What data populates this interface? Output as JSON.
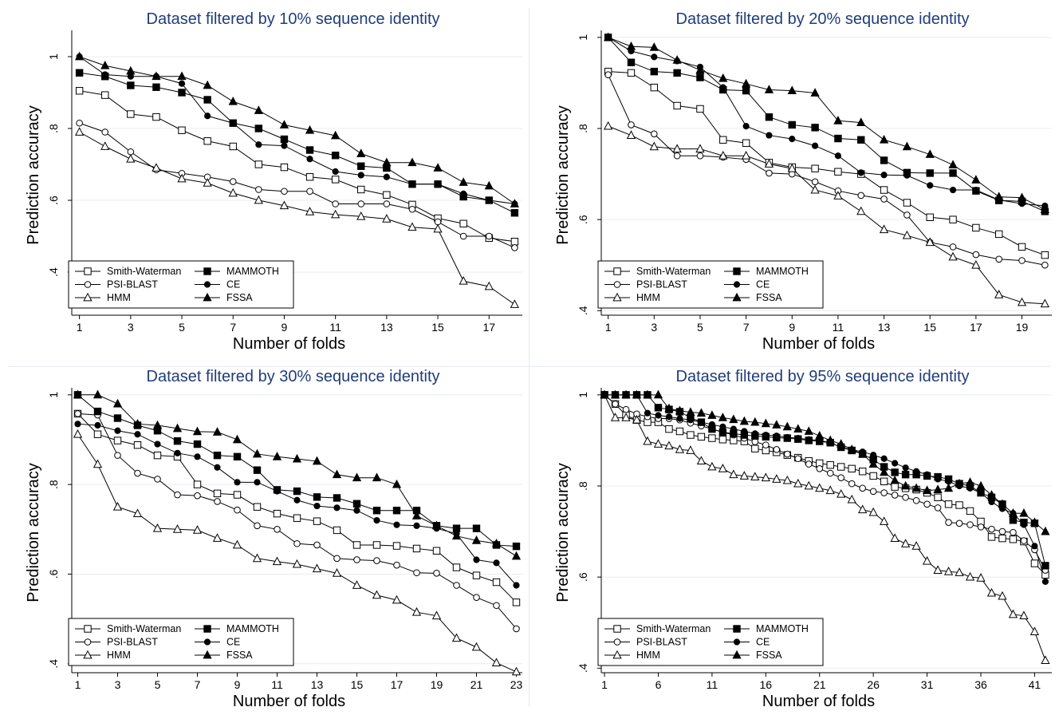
{
  "figure": {
    "legend_labels": {
      "sw": "Smith-Waterman",
      "psi": "PSI-BLAST",
      "hmm": "HMM",
      "mam": "MAMMOTH",
      "ce": "CE",
      "fssa": "FSSA"
    }
  },
  "chart_data": [
    {
      "type": "line",
      "title": "Dataset filtered by 10% sequence identity",
      "xlabel": "Number of folds",
      "ylabel": "Prediction accuracy",
      "x": [
        1,
        2,
        3,
        4,
        5,
        6,
        7,
        8,
        9,
        10,
        11,
        12,
        13,
        14,
        15,
        16,
        17,
        18
      ],
      "xlim": [
        0.7,
        18.3
      ],
      "ylim": [
        0.28,
        1.06
      ],
      "xticks": [
        1,
        3,
        5,
        7,
        9,
        11,
        13,
        15,
        17
      ],
      "yticks": [
        0.4,
        0.6,
        0.8,
        1.0
      ],
      "ytick_labels": [
        ".4",
        ".6",
        ".8",
        "1"
      ],
      "grid": true,
      "legend_position": "bottom-left",
      "series": [
        {
          "key": "sw",
          "name": "Smith-Waterman",
          "marker": "square-open",
          "values": [
            0.905,
            0.893,
            0.84,
            0.832,
            0.795,
            0.765,
            0.75,
            0.7,
            0.692,
            0.665,
            0.658,
            0.63,
            0.615,
            0.588,
            0.55,
            0.535,
            0.495,
            0.485
          ]
        },
        {
          "key": "psi",
          "name": "PSI-BLAST",
          "marker": "circle-open",
          "values": [
            0.815,
            0.79,
            0.735,
            0.685,
            0.675,
            0.665,
            0.652,
            0.63,
            0.625,
            0.625,
            0.59,
            0.59,
            0.59,
            0.575,
            0.54,
            0.5,
            0.5,
            0.468
          ]
        },
        {
          "key": "hmm",
          "name": "HMM",
          "marker": "triangle-open",
          "values": [
            0.79,
            0.75,
            0.715,
            0.69,
            0.66,
            0.648,
            0.62,
            0.6,
            0.585,
            0.568,
            0.56,
            0.555,
            0.548,
            0.525,
            0.52,
            0.375,
            0.36,
            0.31
          ]
        },
        {
          "key": "mam",
          "name": "MAMMOTH",
          "marker": "square-filled",
          "values": [
            0.955,
            0.945,
            0.92,
            0.915,
            0.9,
            0.88,
            0.815,
            0.8,
            0.77,
            0.74,
            0.725,
            0.695,
            0.69,
            0.645,
            0.645,
            0.61,
            0.6,
            0.565
          ]
        },
        {
          "key": "ce",
          "name": "CE",
          "marker": "circle-filled",
          "values": [
            1.0,
            0.95,
            0.945,
            0.945,
            0.925,
            0.835,
            0.815,
            0.755,
            0.752,
            0.715,
            0.68,
            0.67,
            0.665,
            0.645,
            0.645,
            0.618,
            0.6,
            0.59
          ]
        },
        {
          "key": "fssa",
          "name": "FSSA",
          "marker": "triangle-filled",
          "values": [
            1.0,
            0.975,
            0.96,
            0.945,
            0.945,
            0.92,
            0.875,
            0.85,
            0.81,
            0.795,
            0.78,
            0.73,
            0.705,
            0.705,
            0.69,
            0.65,
            0.64,
            0.59
          ]
        }
      ]
    },
    {
      "type": "line",
      "title": "Dataset filtered by 20% sequence identity",
      "xlabel": "Number of folds",
      "ylabel": "Prediction accuracy",
      "x": [
        1,
        2,
        3,
        4,
        5,
        6,
        7,
        8,
        9,
        10,
        11,
        12,
        13,
        14,
        15,
        16,
        17,
        18,
        19,
        20
      ],
      "xlim": [
        0.7,
        20.3
      ],
      "ylim": [
        0.39,
        1.005
      ],
      "xticks": [
        1,
        3,
        5,
        7,
        9,
        11,
        13,
        15,
        17,
        19
      ],
      "yticks": [
        0.4,
        0.6,
        0.8,
        1.0
      ],
      "ytick_labels": [
        ".4",
        ".6",
        ".8",
        "1"
      ],
      "grid": true,
      "legend_position": "bottom-left",
      "series": [
        {
          "key": "sw",
          "name": "Smith-Waterman",
          "marker": "square-open",
          "values": [
            0.925,
            0.922,
            0.89,
            0.85,
            0.843,
            0.775,
            0.768,
            0.725,
            0.715,
            0.712,
            0.705,
            0.7,
            0.665,
            0.637,
            0.605,
            0.6,
            0.582,
            0.568,
            0.54,
            0.522
          ]
        },
        {
          "key": "psi",
          "name": "PSI-BLAST",
          "marker": "circle-open",
          "values": [
            0.918,
            0.808,
            0.788,
            0.74,
            0.74,
            0.737,
            0.732,
            0.702,
            0.7,
            0.683,
            0.663,
            0.653,
            0.645,
            0.61,
            0.55,
            0.54,
            0.523,
            0.513,
            0.51,
            0.5
          ]
        },
        {
          "key": "hmm",
          "name": "HMM",
          "marker": "triangle-open",
          "values": [
            0.805,
            0.785,
            0.76,
            0.755,
            0.755,
            0.74,
            0.74,
            0.722,
            0.712,
            0.665,
            0.652,
            0.618,
            0.578,
            0.565,
            0.55,
            0.518,
            0.5,
            0.435,
            0.418,
            0.415
          ]
        },
        {
          "key": "mam",
          "name": "MAMMOTH",
          "marker": "square-filled",
          "values": [
            1.0,
            0.945,
            0.925,
            0.922,
            0.912,
            0.885,
            0.883,
            0.825,
            0.808,
            0.802,
            0.778,
            0.775,
            0.73,
            0.703,
            0.702,
            0.702,
            0.663,
            0.642,
            0.64,
            0.618
          ]
        },
        {
          "key": "ce",
          "name": "CE",
          "marker": "circle-filled",
          "values": [
            1.0,
            0.97,
            0.957,
            0.948,
            0.935,
            0.89,
            0.805,
            0.785,
            0.777,
            0.762,
            0.74,
            0.703,
            0.698,
            0.697,
            0.675,
            0.665,
            0.665,
            0.643,
            0.635,
            0.63
          ]
        },
        {
          "key": "fssa",
          "name": "FSSA",
          "marker": "triangle-filled",
          "values": [
            1.0,
            0.98,
            0.978,
            0.95,
            0.928,
            0.91,
            0.898,
            0.885,
            0.883,
            0.878,
            0.817,
            0.813,
            0.775,
            0.76,
            0.743,
            0.72,
            0.687,
            0.65,
            0.648,
            0.622
          ]
        }
      ]
    },
    {
      "type": "line",
      "title": "Dataset filtered by 30% sequence identity",
      "xlabel": "Number of folds",
      "ylabel": "Prediction accuracy",
      "x": [
        1,
        2,
        3,
        4,
        5,
        6,
        7,
        8,
        9,
        10,
        11,
        12,
        13,
        14,
        15,
        16,
        17,
        18,
        19,
        20,
        21,
        22,
        23
      ],
      "xlim": [
        0.7,
        23.3
      ],
      "ylim": [
        0.38,
        1.005
      ],
      "xticks": [
        1,
        3,
        5,
        7,
        9,
        11,
        13,
        15,
        17,
        19,
        21,
        23
      ],
      "yticks": [
        0.4,
        0.6,
        0.8,
        1.0
      ],
      "ytick_labels": [
        ".4",
        ".6",
        ".8",
        "1"
      ],
      "grid": true,
      "legend_position": "bottom-left",
      "series": [
        {
          "key": "sw",
          "name": "Smith-Waterman",
          "marker": "square-open",
          "values": [
            0.958,
            0.912,
            0.898,
            0.888,
            0.865,
            0.862,
            0.8,
            0.78,
            0.777,
            0.75,
            0.735,
            0.725,
            0.718,
            0.698,
            0.665,
            0.665,
            0.663,
            0.657,
            0.652,
            0.615,
            0.597,
            0.582,
            0.537
          ]
        },
        {
          "key": "psi",
          "name": "PSI-BLAST",
          "marker": "circle-open",
          "values": [
            0.958,
            0.955,
            0.865,
            0.825,
            0.812,
            0.777,
            0.775,
            0.762,
            0.743,
            0.708,
            0.7,
            0.668,
            0.665,
            0.635,
            0.632,
            0.63,
            0.62,
            0.603,
            0.602,
            0.575,
            0.548,
            0.53,
            0.478
          ]
        },
        {
          "key": "hmm",
          "name": "HMM",
          "marker": "triangle-open",
          "values": [
            0.912,
            0.845,
            0.75,
            0.735,
            0.702,
            0.7,
            0.698,
            0.68,
            0.665,
            0.635,
            0.628,
            0.622,
            0.612,
            0.602,
            0.575,
            0.553,
            0.542,
            0.515,
            0.507,
            0.457,
            0.437,
            0.402,
            0.382
          ]
        },
        {
          "key": "mam",
          "name": "MAMMOTH",
          "marker": "square-filled",
          "values": [
            1.0,
            0.963,
            0.948,
            0.932,
            0.92,
            0.897,
            0.89,
            0.865,
            0.862,
            0.832,
            0.788,
            0.785,
            0.772,
            0.77,
            0.757,
            0.742,
            0.742,
            0.742,
            0.708,
            0.702,
            0.702,
            0.665,
            0.662
          ]
        },
        {
          "key": "ce",
          "name": "CE",
          "marker": "circle-filled",
          "values": [
            0.935,
            0.932,
            0.92,
            0.912,
            0.89,
            0.87,
            0.862,
            0.838,
            0.805,
            0.805,
            0.785,
            0.765,
            0.752,
            0.748,
            0.742,
            0.72,
            0.71,
            0.708,
            0.702,
            0.69,
            0.632,
            0.625,
            0.575
          ]
        },
        {
          "key": "fssa",
          "name": "FSSA",
          "marker": "triangle-filled",
          "values": [
            1.0,
            1.0,
            0.98,
            0.935,
            0.932,
            0.925,
            0.918,
            0.917,
            0.9,
            0.868,
            0.862,
            0.857,
            0.852,
            0.822,
            0.815,
            0.815,
            0.8,
            0.73,
            0.708,
            0.685,
            0.675,
            0.668,
            0.64
          ]
        }
      ]
    },
    {
      "type": "line",
      "title": "Dataset filtered by 95% sequence identity",
      "xlabel": "Number of folds",
      "ylabel": "Prediction accuracy",
      "x": [
        1,
        2,
        3,
        4,
        5,
        6,
        7,
        8,
        9,
        10,
        11,
        12,
        13,
        14,
        15,
        16,
        17,
        18,
        19,
        20,
        21,
        22,
        23,
        24,
        25,
        26,
        27,
        28,
        29,
        30,
        31,
        32,
        33,
        34,
        35,
        36,
        37,
        38,
        39,
        40,
        41,
        42
      ],
      "xlim": [
        0.7,
        42.6
      ],
      "ylim": [
        0.39,
        1.005
      ],
      "xticks": [
        1,
        6,
        11,
        16,
        21,
        26,
        31,
        36,
        41
      ],
      "yticks": [
        0.4,
        0.6,
        0.8,
        1.0
      ],
      "ytick_labels": [
        ".4",
        ".6",
        ".8",
        "1"
      ],
      "grid": true,
      "legend_position": "bottom-left",
      "series": [
        {
          "key": "sw",
          "name": "Smith-Waterman",
          "marker": "square-open",
          "values": [
            1.0,
            0.98,
            0.955,
            0.945,
            0.94,
            0.94,
            0.925,
            0.92,
            0.912,
            0.908,
            0.905,
            0.902,
            0.9,
            0.898,
            0.882,
            0.878,
            0.874,
            0.868,
            0.862,
            0.855,
            0.85,
            0.846,
            0.842,
            0.838,
            0.832,
            0.822,
            0.81,
            0.798,
            0.795,
            0.792,
            0.785,
            0.775,
            0.76,
            0.758,
            0.745,
            0.722,
            0.688,
            0.685,
            0.683,
            0.678,
            0.63,
            0.605
          ]
        },
        {
          "key": "psi",
          "name": "PSI-BLAST",
          "marker": "circle-open",
          "values": [
            1.0,
            0.98,
            0.968,
            0.958,
            0.952,
            0.948,
            0.948,
            0.945,
            0.938,
            0.932,
            0.925,
            0.918,
            0.912,
            0.905,
            0.897,
            0.89,
            0.88,
            0.87,
            0.86,
            0.848,
            0.838,
            0.828,
            0.818,
            0.805,
            0.795,
            0.788,
            0.785,
            0.78,
            0.775,
            0.768,
            0.76,
            0.752,
            0.72,
            0.718,
            0.715,
            0.71,
            0.705,
            0.7,
            0.698,
            0.68,
            0.66,
            0.615
          ]
        },
        {
          "key": "hmm",
          "name": "HMM",
          "marker": "triangle-open",
          "values": [
            1.0,
            0.95,
            0.95,
            0.945,
            0.898,
            0.892,
            0.888,
            0.88,
            0.878,
            0.855,
            0.842,
            0.838,
            0.825,
            0.822,
            0.82,
            0.818,
            0.815,
            0.812,
            0.805,
            0.8,
            0.795,
            0.79,
            0.782,
            0.77,
            0.748,
            0.742,
            0.722,
            0.685,
            0.673,
            0.668,
            0.635,
            0.615,
            0.612,
            0.61,
            0.6,
            0.598,
            0.565,
            0.558,
            0.518,
            0.515,
            0.48,
            0.417
          ]
        },
        {
          "key": "mam",
          "name": "MAMMOTH",
          "marker": "square-filled",
          "values": [
            1.0,
            1.0,
            1.0,
            1.0,
            1.0,
            0.972,
            0.968,
            0.963,
            0.95,
            0.94,
            0.925,
            0.918,
            0.915,
            0.912,
            0.91,
            0.908,
            0.906,
            0.905,
            0.903,
            0.9,
            0.898,
            0.895,
            0.885,
            0.878,
            0.87,
            0.858,
            0.842,
            0.83,
            0.825,
            0.825,
            0.822,
            0.82,
            0.815,
            0.805,
            0.8,
            0.785,
            0.775,
            0.76,
            0.725,
            0.72,
            0.718,
            0.625
          ]
        },
        {
          "key": "ce",
          "name": "CE",
          "marker": "circle-filled",
          "values": [
            1.0,
            1.0,
            1.0,
            1.0,
            0.96,
            0.955,
            0.952,
            0.948,
            0.945,
            0.94,
            0.935,
            0.93,
            0.925,
            0.92,
            0.915,
            0.912,
            0.91,
            0.907,
            0.905,
            0.902,
            0.9,
            0.895,
            0.885,
            0.88,
            0.875,
            0.868,
            0.86,
            0.85,
            0.84,
            0.832,
            0.825,
            0.815,
            0.81,
            0.8,
            0.795,
            0.785,
            0.765,
            0.75,
            0.74,
            0.715,
            0.668,
            0.59
          ]
        },
        {
          "key": "fssa",
          "name": "FSSA",
          "marker": "triangle-filled",
          "values": [
            1.0,
            1.0,
            1.0,
            1.0,
            1.0,
            1.0,
            0.97,
            0.965,
            0.962,
            0.96,
            0.955,
            0.95,
            0.946,
            0.942,
            0.94,
            0.937,
            0.934,
            0.93,
            0.925,
            0.92,
            0.91,
            0.9,
            0.892,
            0.88,
            0.87,
            0.848,
            0.83,
            0.812,
            0.8,
            0.795,
            0.79,
            0.792,
            0.795,
            0.805,
            0.808,
            0.8,
            0.78,
            0.76,
            0.74,
            0.74,
            0.72,
            0.7
          ]
        }
      ]
    }
  ]
}
